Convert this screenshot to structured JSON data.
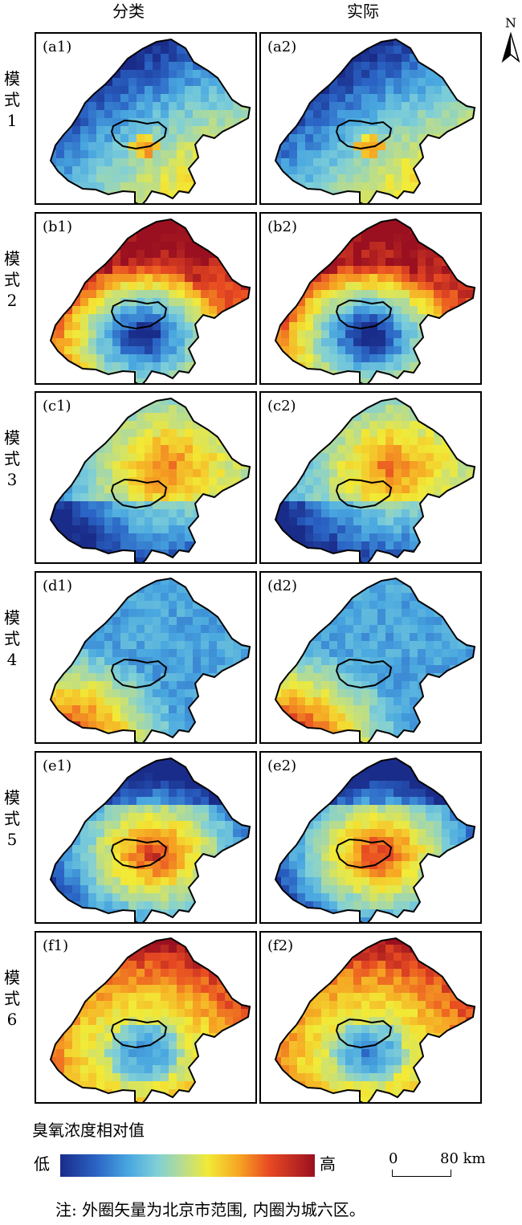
{
  "columns": {
    "classified": "分类",
    "actual": "实际"
  },
  "north_arrow": {
    "label": "N"
  },
  "rows": [
    {
      "mode_label": "模\n式\n1",
      "panels": [
        "(a1)",
        "(a2)"
      ],
      "pattern": "mode1"
    },
    {
      "mode_label": "模\n式\n2",
      "panels": [
        "(b1)",
        "(b2)"
      ],
      "pattern": "mode2"
    },
    {
      "mode_label": "模\n式\n3",
      "panels": [
        "(c1)",
        "(c2)"
      ],
      "pattern": "mode3"
    },
    {
      "mode_label": "模\n式\n4",
      "panels": [
        "(d1)",
        "(d2)"
      ],
      "pattern": "mode4"
    },
    {
      "mode_label": "模\n式\n5",
      "panels": [
        "(e1)",
        "(e2)"
      ],
      "pattern": "mode5"
    },
    {
      "mode_label": "模\n式\n6",
      "panels": [
        "(f1)",
        "(f2)"
      ],
      "pattern": "mode6"
    }
  ],
  "legend": {
    "title": "臭氧浓度相对值",
    "low": "低",
    "high": "高",
    "colors": [
      "#1a2c8a",
      "#2a63c4",
      "#4aa8e0",
      "#7fcfd8",
      "#b7dc90",
      "#f2ea36",
      "#f6a623",
      "#e84a22",
      "#9a1020"
    ]
  },
  "scale_bar": {
    "start": "0",
    "end": "80 km"
  },
  "note": "注: 外圈矢量为北京市范围, 内圈为城六区。"
}
